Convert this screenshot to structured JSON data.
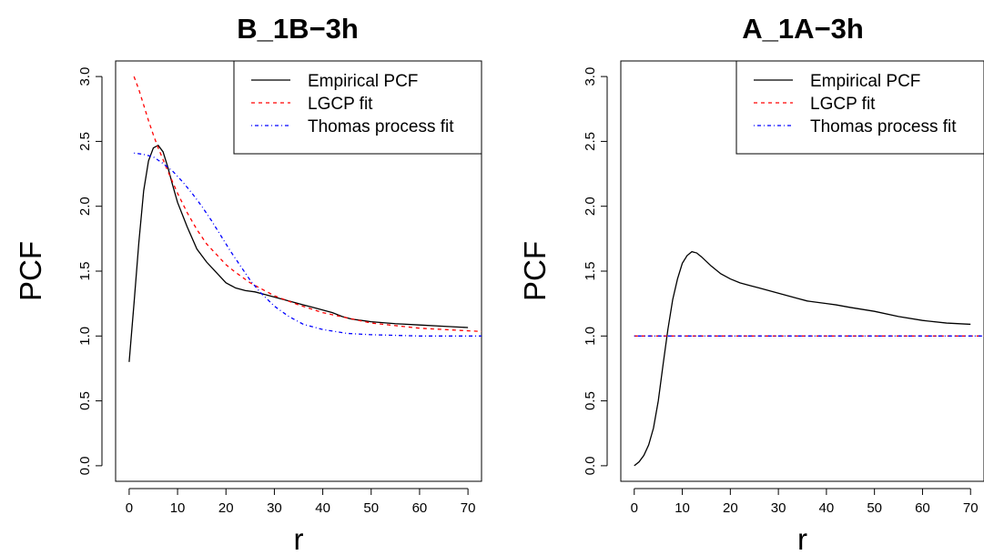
{
  "chart_data": [
    {
      "type": "line",
      "title": "B_1B−3h",
      "xlabel": "r",
      "ylabel": "PCF",
      "xlim": [
        -2.8,
        72.8
      ],
      "ylim": [
        -0.12,
        3.12
      ],
      "xticks": [
        0,
        10,
        20,
        30,
        40,
        50,
        60,
        70
      ],
      "xtick_labels": [
        "0",
        "10",
        "20",
        "30",
        "40",
        "50",
        "60",
        "70"
      ],
      "yticks": [
        0.0,
        0.5,
        1.0,
        1.5,
        2.0,
        2.5,
        3.0
      ],
      "ytick_labels": [
        "0.0",
        "0.5",
        "1.0",
        "1.5",
        "2.0",
        "2.5",
        "3.0"
      ],
      "grid": false,
      "legend_position": "top-right",
      "series": [
        {
          "name": "Empirical PCF",
          "color": "#000000",
          "linestyle": "solid",
          "x": [
            0,
            1,
            2,
            3,
            4,
            5,
            6,
            7,
            8,
            9,
            10,
            12,
            14,
            16,
            18,
            20,
            22,
            24,
            26,
            28,
            30,
            32,
            34,
            36,
            38,
            40,
            42,
            44,
            46,
            48,
            50,
            55,
            60,
            65,
            70
          ],
          "y": [
            0.8,
            1.25,
            1.72,
            2.12,
            2.35,
            2.45,
            2.47,
            2.42,
            2.3,
            2.16,
            2.03,
            1.84,
            1.67,
            1.57,
            1.49,
            1.41,
            1.37,
            1.35,
            1.34,
            1.32,
            1.3,
            1.28,
            1.26,
            1.24,
            1.22,
            1.2,
            1.18,
            1.15,
            1.13,
            1.12,
            1.11,
            1.095,
            1.085,
            1.075,
            1.065
          ]
        },
        {
          "name": "LGCP fit",
          "color": "#ff0000",
          "linestyle": "dashed",
          "x": [
            1,
            2,
            3,
            4,
            5,
            6,
            7,
            8,
            10,
            12,
            14,
            16,
            18,
            20,
            22,
            25,
            28,
            30,
            35,
            40,
            45,
            50,
            55,
            60,
            65,
            70,
            72.8
          ],
          "y": [
            3.0,
            2.9,
            2.78,
            2.66,
            2.55,
            2.45,
            2.36,
            2.27,
            2.1,
            1.95,
            1.82,
            1.71,
            1.63,
            1.55,
            1.49,
            1.41,
            1.35,
            1.31,
            1.24,
            1.18,
            1.14,
            1.1,
            1.08,
            1.06,
            1.05,
            1.04,
            1.035
          ]
        },
        {
          "name": "Thomas process fit",
          "color": "#0000ff",
          "linestyle": "dotdash",
          "x": [
            1,
            3,
            5,
            7,
            9,
            11,
            13,
            15,
            17,
            19,
            21,
            23,
            25,
            27,
            30,
            33,
            36,
            40,
            45,
            50,
            55,
            60,
            65,
            70,
            72.8
          ],
          "y": [
            2.41,
            2.4,
            2.38,
            2.33,
            2.27,
            2.19,
            2.1,
            2.0,
            1.89,
            1.77,
            1.65,
            1.54,
            1.43,
            1.34,
            1.23,
            1.15,
            1.09,
            1.05,
            1.02,
            1.01,
            1.005,
            1.0,
            1.0,
            1.0,
            1.0
          ]
        }
      ]
    },
    {
      "type": "line",
      "title": "A_1A−3h",
      "xlabel": "r",
      "ylabel": "PCF",
      "xlim": [
        -2.8,
        72.8
      ],
      "ylim": [
        -0.12,
        3.12
      ],
      "xticks": [
        0,
        10,
        20,
        30,
        40,
        50,
        60,
        70
      ],
      "xtick_labels": [
        "0",
        "10",
        "20",
        "30",
        "40",
        "50",
        "60",
        "70"
      ],
      "yticks": [
        0.0,
        0.5,
        1.0,
        1.5,
        2.0,
        2.5,
        3.0
      ],
      "ytick_labels": [
        "0.0",
        "0.5",
        "1.0",
        "1.5",
        "2.0",
        "2.5",
        "3.0"
      ],
      "grid": false,
      "legend_position": "top-right",
      "series": [
        {
          "name": "Empirical PCF",
          "color": "#000000",
          "linestyle": "solid",
          "x": [
            0,
            1,
            2,
            3,
            4,
            5,
            6,
            7,
            8,
            9,
            10,
            11,
            12,
            13,
            14,
            16,
            18,
            20,
            22,
            24,
            26,
            28,
            30,
            32,
            34,
            36,
            38,
            40,
            42,
            45,
            50,
            55,
            60,
            65,
            70
          ],
          "y": [
            0.0,
            0.03,
            0.08,
            0.16,
            0.29,
            0.5,
            0.78,
            1.05,
            1.28,
            1.44,
            1.56,
            1.62,
            1.65,
            1.64,
            1.61,
            1.54,
            1.48,
            1.44,
            1.41,
            1.39,
            1.37,
            1.35,
            1.33,
            1.31,
            1.29,
            1.27,
            1.26,
            1.25,
            1.24,
            1.22,
            1.19,
            1.15,
            1.12,
            1.1,
            1.09
          ]
        },
        {
          "name": "LGCP fit",
          "color": "#ff0000",
          "linestyle": "dashed",
          "x": [
            0,
            72.8
          ],
          "y": [
            1.0,
            1.0
          ]
        },
        {
          "name": "Thomas process fit",
          "color": "#0000ff",
          "linestyle": "dotdash",
          "x": [
            0,
            72.8
          ],
          "y": [
            1.0,
            1.0
          ]
        }
      ]
    }
  ]
}
